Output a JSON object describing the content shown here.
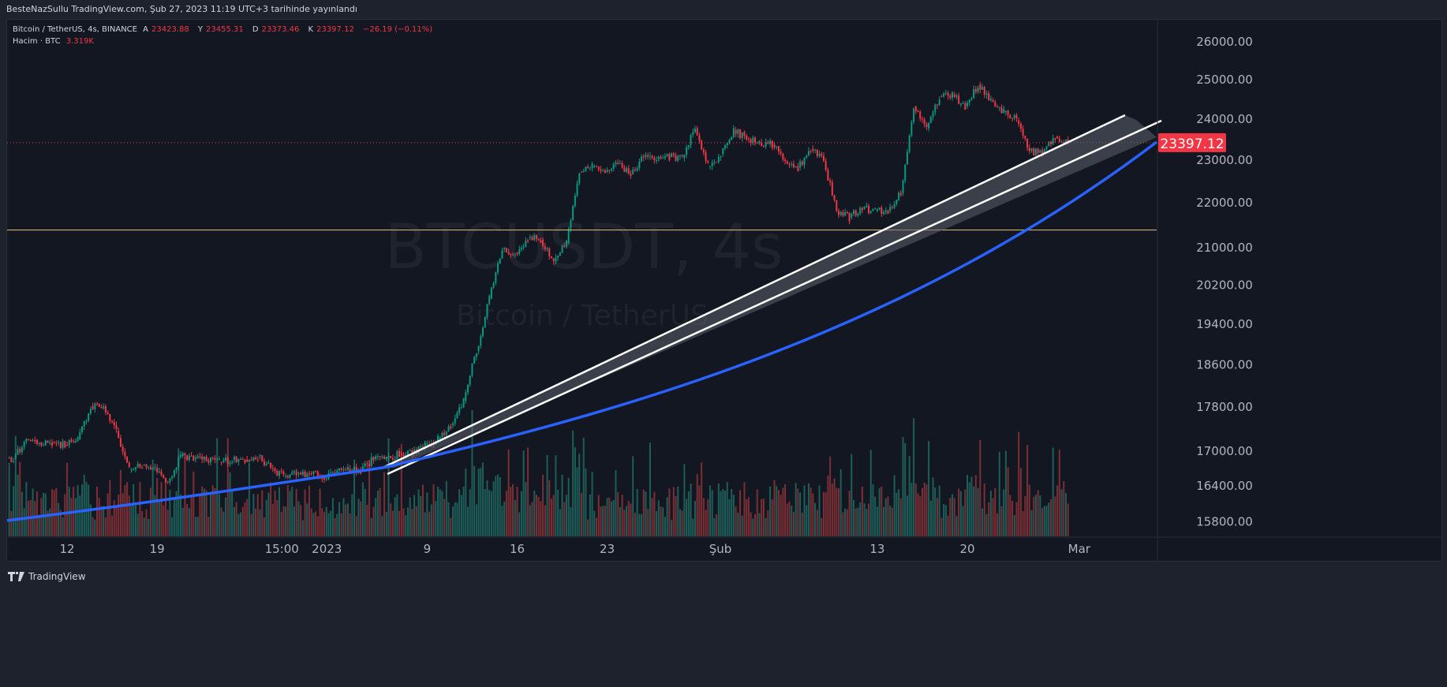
{
  "header": {
    "published": "BesteNazSullu TradingView.com, Şub 27, 2023 11:19 UTC+3 tarihinde yayınlandı"
  },
  "legend": {
    "symbol": "Bitcoin / TetherUS, 4s, BINANCE",
    "open_label": "A",
    "open": "23423.88",
    "high_label": "Y",
    "high": "23455.31",
    "low_label": "D",
    "low": "23373.46",
    "close_label": "K",
    "close": "23397.12",
    "change": "−26.19 (−0.11%)",
    "volume_label": "Hacim · BTC",
    "volume": "3.319K"
  },
  "watermark": {
    "ticker": "BTCUSDT, 4s",
    "name": "Bitcoin / TetherUS"
  },
  "footer": {
    "brand": "TradingView"
  },
  "colors": {
    "up": "#089981",
    "down": "#f23645",
    "bg": "#131722",
    "trend": "#2962ff",
    "level": "#e8c27a"
  },
  "chart_data": {
    "type": "candlestick",
    "title": "BTCUSDT, 4s",
    "scale": "log",
    "ylim": [
      15600,
      26300
    ],
    "y_ticks": [
      "26000.00",
      "25000.00",
      "24000.00",
      "23000.00",
      "22000.00",
      "21000.00",
      "20200.00",
      "19400.00",
      "18600.00",
      "17800.00",
      "17000.00",
      "16400.00",
      "15800.00"
    ],
    "x_ticks": [
      {
        "label": "12",
        "day": 5
      },
      {
        "label": "19",
        "day": 12
      },
      {
        "label": "15:00",
        "day": 21.7
      },
      {
        "label": "2023",
        "day": 25.2
      },
      {
        "label": "9",
        "day": 33
      },
      {
        "label": "16",
        "day": 40
      },
      {
        "label": "23",
        "day": 47
      },
      {
        "label": "Şub",
        "day": 55.8
      },
      {
        "label": "13",
        "day": 68
      },
      {
        "label": "20",
        "day": 75
      },
      {
        "label": "Mar",
        "day": 83.7
      }
    ],
    "start_date": "2022-12-07",
    "daily_close": [
      16850,
      17200,
      17150,
      17150,
      17100,
      17200,
      17800,
      17800,
      17350,
      16650,
      16750,
      16700,
      16450,
      16900,
      16850,
      16830,
      16800,
      16840,
      16840,
      16900,
      16700,
      16550,
      16600,
      16600,
      16540,
      16600,
      16680,
      16670,
      16850,
      16830,
      16950,
      16940,
      17100,
      17200,
      17450,
      17900,
      18850,
      19900,
      20950,
      20870,
      21200,
      21150,
      20680,
      21080,
      22700,
      22800,
      22700,
      22900,
      22650,
      23050,
      23000,
      23050,
      23030,
      23750,
      22830,
      23120,
      23700,
      23500,
      23400,
      23350,
      22950,
      22800,
      23250,
      22950,
      21800,
      21650,
      21850,
      21800,
      21800,
      22200,
      24300,
      23750,
      24550,
      24600,
      24300,
      24850,
      24450,
      24150,
      23950,
      23200,
      23150,
      23550,
      23397.12
    ],
    "last_price": "23397.12",
    "horizontal_level": 21370
  }
}
